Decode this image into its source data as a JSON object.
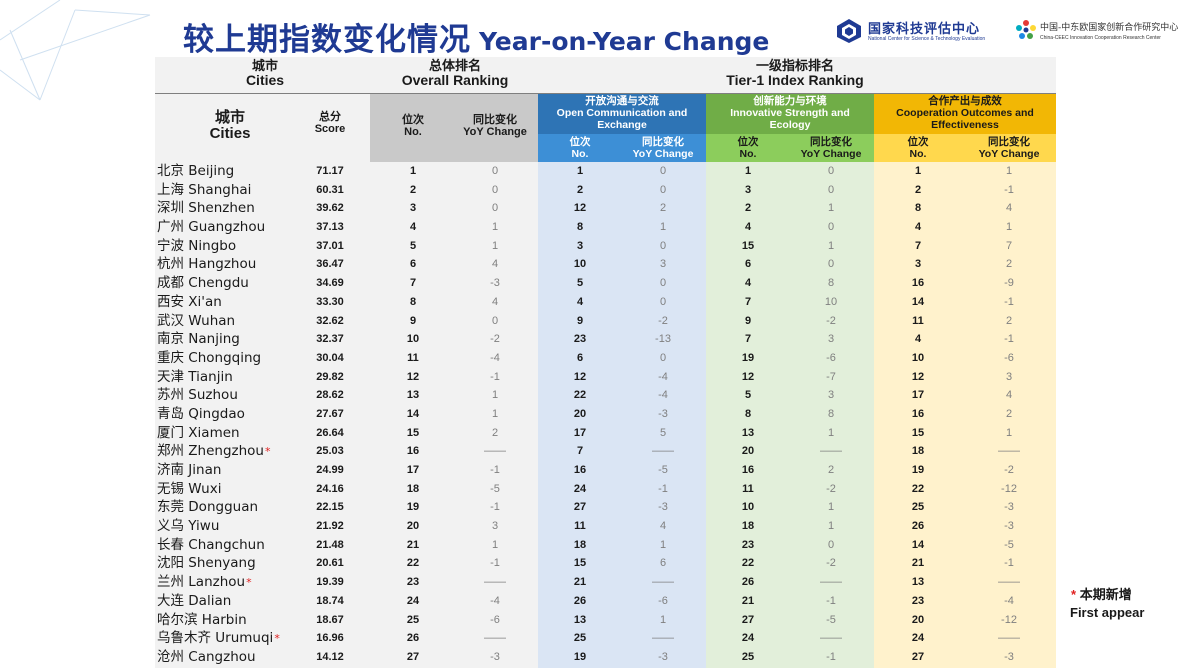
{
  "title": {
    "zh": "较上期指数变化情况",
    "en": "Year-on-Year Change"
  },
  "logos": {
    "nce": {
      "zh": "国家科技评估中心",
      "en": "National Center for Science & Technology Evaluation"
    },
    "ceec": {
      "zh": "中国-中东欧国家创新合作研究中心",
      "en": "China-CEEC Innovation Cooperation Research Center"
    }
  },
  "header": {
    "group_city_zh": "城市",
    "group_city_en": "Cities",
    "group_overall_zh": "总体排名",
    "group_overall_en": "Overall Ranking",
    "group_tier_zh": "一级指标排名",
    "group_tier_en": "Tier-1 Index Ranking",
    "city_zh": "城市",
    "city_en": "Cities",
    "score_zh": "总分",
    "score_en": "Score",
    "no_zh": "位次",
    "no_en": "No.",
    "yoy_zh": "同比变化",
    "yoy_en": "YoY Change",
    "comm_zh": "开放沟通与交流",
    "comm_en1": "Open Communication and",
    "comm_en2": "Exchange",
    "inno_zh": "创新能力与环境",
    "inno_en1": "Innovative Strength and",
    "inno_en2": "Ecology",
    "coop_zh": "合作产出与成效",
    "coop_en1": "Cooperation Outcomes and",
    "coop_en2": "Effectiveness"
  },
  "rows": [
    {
      "city": "北京 Beijing",
      "new": false,
      "score": "71.17",
      "o_no": "1",
      "o_chg": "0",
      "cm_no": "1",
      "cm_chg": "0",
      "in_no": "1",
      "in_chg": "0",
      "cp_no": "1",
      "cp_chg": "1"
    },
    {
      "city": "上海 Shanghai",
      "new": false,
      "score": "60.31",
      "o_no": "2",
      "o_chg": "0",
      "cm_no": "2",
      "cm_chg": "0",
      "in_no": "3",
      "in_chg": "0",
      "cp_no": "2",
      "cp_chg": "-1"
    },
    {
      "city": "深圳 Shenzhen",
      "new": false,
      "score": "39.62",
      "o_no": "3",
      "o_chg": "0",
      "cm_no": "12",
      "cm_chg": "2",
      "in_no": "2",
      "in_chg": "1",
      "cp_no": "8",
      "cp_chg": "4"
    },
    {
      "city": "广州 Guangzhou",
      "new": false,
      "score": "37.13",
      "o_no": "4",
      "o_chg": "1",
      "cm_no": "8",
      "cm_chg": "1",
      "in_no": "4",
      "in_chg": "0",
      "cp_no": "4",
      "cp_chg": "1"
    },
    {
      "city": "宁波 Ningbo",
      "new": false,
      "score": "37.01",
      "o_no": "5",
      "o_chg": "1",
      "cm_no": "3",
      "cm_chg": "0",
      "in_no": "15",
      "in_chg": "1",
      "cp_no": "7",
      "cp_chg": "7"
    },
    {
      "city": "杭州 Hangzhou",
      "new": false,
      "score": "36.47",
      "o_no": "6",
      "o_chg": "4",
      "cm_no": "10",
      "cm_chg": "3",
      "in_no": "6",
      "in_chg": "0",
      "cp_no": "3",
      "cp_chg": "2"
    },
    {
      "city": "成都 Chengdu",
      "new": false,
      "score": "34.69",
      "o_no": "7",
      "o_chg": "-3",
      "cm_no": "5",
      "cm_chg": "0",
      "in_no": "4",
      "in_chg": "8",
      "cp_no": "16",
      "cp_chg": "-9"
    },
    {
      "city": "西安 Xi'an",
      "new": false,
      "score": "33.30",
      "o_no": "8",
      "o_chg": "4",
      "cm_no": "4",
      "cm_chg": "0",
      "in_no": "7",
      "in_chg": "10",
      "cp_no": "14",
      "cp_chg": "-1"
    },
    {
      "city": "武汉 Wuhan",
      "new": false,
      "score": "32.62",
      "o_no": "9",
      "o_chg": "0",
      "cm_no": "9",
      "cm_chg": "-2",
      "in_no": "9",
      "in_chg": "-2",
      "cp_no": "11",
      "cp_chg": "2"
    },
    {
      "city": "南京 Nanjing",
      "new": false,
      "score": "32.37",
      "o_no": "10",
      "o_chg": "-2",
      "cm_no": "23",
      "cm_chg": "-13",
      "in_no": "7",
      "in_chg": "3",
      "cp_no": "4",
      "cp_chg": "-1"
    },
    {
      "city": "重庆 Chongqing",
      "new": false,
      "score": "30.04",
      "o_no": "11",
      "o_chg": "-4",
      "cm_no": "6",
      "cm_chg": "0",
      "in_no": "19",
      "in_chg": "-6",
      "cp_no": "10",
      "cp_chg": "-6"
    },
    {
      "city": "天津 Tianjin",
      "new": false,
      "score": "29.82",
      "o_no": "12",
      "o_chg": "-1",
      "cm_no": "12",
      "cm_chg": "-4",
      "in_no": "12",
      "in_chg": "-7",
      "cp_no": "12",
      "cp_chg": "3"
    },
    {
      "city": "苏州 Suzhou",
      "new": false,
      "score": "28.62",
      "o_no": "13",
      "o_chg": "1",
      "cm_no": "22",
      "cm_chg": "-4",
      "in_no": "5",
      "in_chg": "3",
      "cp_no": "17",
      "cp_chg": "4"
    },
    {
      "city": "青岛 Qingdao",
      "new": false,
      "score": "27.67",
      "o_no": "14",
      "o_chg": "1",
      "cm_no": "20",
      "cm_chg": "-3",
      "in_no": "8",
      "in_chg": "8",
      "cp_no": "16",
      "cp_chg": "2"
    },
    {
      "city": "厦门 Xiamen",
      "new": false,
      "score": "26.64",
      "o_no": "15",
      "o_chg": "2",
      "cm_no": "17",
      "cm_chg": "5",
      "in_no": "13",
      "in_chg": "1",
      "cp_no": "15",
      "cp_chg": "1"
    },
    {
      "city": "郑州 Zhengzhou",
      "new": true,
      "score": "25.03",
      "o_no": "16",
      "o_chg": "——",
      "cm_no": "7",
      "cm_chg": "——",
      "in_no": "20",
      "in_chg": "——",
      "cp_no": "18",
      "cp_chg": "——"
    },
    {
      "city": "济南 Jinan",
      "new": false,
      "score": "24.99",
      "o_no": "17",
      "o_chg": "-1",
      "cm_no": "16",
      "cm_chg": "-5",
      "in_no": "16",
      "in_chg": "2",
      "cp_no": "19",
      "cp_chg": "-2"
    },
    {
      "city": "无锡 Wuxi",
      "new": false,
      "score": "24.16",
      "o_no": "18",
      "o_chg": "-5",
      "cm_no": "24",
      "cm_chg": "-1",
      "in_no": "11",
      "in_chg": "-2",
      "cp_no": "22",
      "cp_chg": "-12"
    },
    {
      "city": "东莞 Dongguan",
      "new": false,
      "score": "22.15",
      "o_no": "19",
      "o_chg": "-1",
      "cm_no": "27",
      "cm_chg": "-3",
      "in_no": "10",
      "in_chg": "1",
      "cp_no": "25",
      "cp_chg": "-3"
    },
    {
      "city": "义乌 Yiwu",
      "new": false,
      "score": "21.92",
      "o_no": "20",
      "o_chg": "3",
      "cm_no": "11",
      "cm_chg": "4",
      "in_no": "18",
      "in_chg": "1",
      "cp_no": "26",
      "cp_chg": "-3"
    },
    {
      "city": "长春 Changchun",
      "new": false,
      "score": "21.48",
      "o_no": "21",
      "o_chg": "1",
      "cm_no": "18",
      "cm_chg": "1",
      "in_no": "23",
      "in_chg": "0",
      "cp_no": "14",
      "cp_chg": "-5"
    },
    {
      "city": "沈阳 Shenyang",
      "new": false,
      "score": "20.61",
      "o_no": "22",
      "o_chg": "-1",
      "cm_no": "15",
      "cm_chg": "6",
      "in_no": "22",
      "in_chg": "-2",
      "cp_no": "21",
      "cp_chg": "-1"
    },
    {
      "city": "兰州 Lanzhou",
      "new": true,
      "score": "19.39",
      "o_no": "23",
      "o_chg": "——",
      "cm_no": "21",
      "cm_chg": "——",
      "in_no": "26",
      "in_chg": "——",
      "cp_no": "13",
      "cp_chg": "——"
    },
    {
      "city": "大连 Dalian",
      "new": false,
      "score": "18.74",
      "o_no": "24",
      "o_chg": "-4",
      "cm_no": "26",
      "cm_chg": "-6",
      "in_no": "21",
      "in_chg": "-1",
      "cp_no": "23",
      "cp_chg": "-4"
    },
    {
      "city": "哈尔滨 Harbin",
      "new": false,
      "score": "18.67",
      "o_no": "25",
      "o_chg": "-6",
      "cm_no": "13",
      "cm_chg": "1",
      "in_no": "27",
      "in_chg": "-5",
      "cp_no": "20",
      "cp_chg": "-12"
    },
    {
      "city": "乌鲁木齐 Urumuqi",
      "new": true,
      "score": "16.96",
      "o_no": "26",
      "o_chg": "——",
      "cm_no": "25",
      "cm_chg": "——",
      "in_no": "24",
      "in_chg": "——",
      "cp_no": "24",
      "cp_chg": "——"
    },
    {
      "city": "沧州 Cangzhou",
      "new": false,
      "score": "14.12",
      "o_no": "27",
      "o_chg": "-3",
      "cm_no": "19",
      "cm_chg": "-3",
      "in_no": "25",
      "in_chg": "-1",
      "cp_no": "27",
      "cp_chg": "-3"
    }
  ],
  "legend": {
    "marker": "*",
    "zh": "本期新增",
    "en": "First appear"
  }
}
